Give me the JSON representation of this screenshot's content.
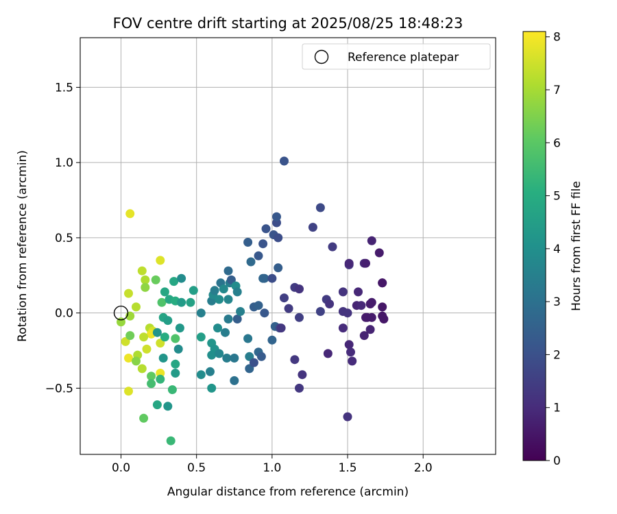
{
  "chart_data": {
    "type": "scatter",
    "title": "FOV centre drift starting at 2025/08/25 18:48:23",
    "xlabel": "Angular distance from reference (arcmin)",
    "ylabel": "Rotation from reference (arcmin)",
    "xlim": [
      -0.27,
      2.48
    ],
    "ylim": [
      -0.94,
      1.83
    ],
    "xticks": [
      0.0,
      0.5,
      1.0,
      1.5,
      2.0
    ],
    "xtick_labels": [
      "0.0",
      "0.5",
      "1.0",
      "1.5",
      "2.0"
    ],
    "yticks": [
      -0.5,
      0.0,
      0.5,
      1.0,
      1.5
    ],
    "ytick_labels": [
      "−0.5",
      "0.0",
      "0.5",
      "1.0",
      "1.5"
    ],
    "grid": true,
    "legend": {
      "placement": "top-right",
      "entries": [
        "Reference platepar"
      ]
    },
    "colorbar": {
      "label": "Hours from first FF file",
      "colormap": "viridis",
      "range": [
        0,
        8.1
      ],
      "ticks": [
        0,
        1,
        2,
        3,
        4,
        5,
        6,
        7,
        8
      ],
      "tick_labels": [
        "0",
        "1",
        "2",
        "3",
        "4",
        "5",
        "6",
        "7",
        "8"
      ]
    },
    "reference": {
      "x": 0.0,
      "y": 0.0,
      "marker": "open-circle"
    },
    "series": [
      {
        "points": [
          [
            0.06,
            0.66,
            7.8
          ],
          [
            0.26,
            0.35,
            7.7
          ],
          [
            0.14,
            0.28,
            7.3
          ],
          [
            0.16,
            0.22,
            7.1
          ],
          [
            0.23,
            0.22,
            6.2
          ],
          [
            0.16,
            0.17,
            6.7
          ],
          [
            0.05,
            0.13,
            7.4
          ],
          [
            0.1,
            0.04,
            7.2
          ],
          [
            0.06,
            -0.02,
            6.9
          ],
          [
            0.0,
            -0.06,
            6.8
          ],
          [
            0.19,
            -0.1,
            7.2
          ],
          [
            0.21,
            -0.12,
            7.6
          ],
          [
            0.2,
            -0.14,
            7.9
          ],
          [
            0.24,
            -0.13,
            4.2
          ],
          [
            0.03,
            -0.19,
            7.5
          ],
          [
            0.15,
            -0.16,
            7.3
          ],
          [
            0.06,
            -0.15,
            6.3
          ],
          [
            0.26,
            -0.2,
            7.5
          ],
          [
            0.17,
            -0.24,
            7.5
          ],
          [
            0.11,
            -0.28,
            7.1
          ],
          [
            0.05,
            -0.3,
            7.9
          ],
          [
            0.1,
            -0.32,
            6.6
          ],
          [
            0.14,
            -0.37,
            7.2
          ],
          [
            0.26,
            -0.4,
            7.9
          ],
          [
            0.2,
            -0.42,
            6.1
          ],
          [
            0.26,
            -0.44,
            5.3
          ],
          [
            0.2,
            -0.47,
            5.6
          ],
          [
            0.05,
            -0.52,
            7.7
          ],
          [
            0.34,
            -0.51,
            5.4
          ],
          [
            0.24,
            -0.61,
            4.8
          ],
          [
            0.31,
            -0.62,
            4.2
          ],
          [
            0.15,
            -0.7,
            6.1
          ],
          [
            0.33,
            -0.85,
            5.4
          ],
          [
            0.35,
            0.21,
            4.8
          ],
          [
            0.29,
            0.14,
            4.8
          ],
          [
            0.4,
            0.23,
            3.9
          ],
          [
            0.27,
            0.07,
            5.8
          ],
          [
            0.32,
            0.09,
            4.8
          ],
          [
            0.36,
            0.08,
            5.0
          ],
          [
            0.4,
            0.07,
            4.4
          ],
          [
            0.46,
            0.07,
            4.6
          ],
          [
            0.48,
            0.15,
            4.5
          ],
          [
            0.28,
            -0.03,
            4.7
          ],
          [
            0.31,
            -0.05,
            4.5
          ],
          [
            0.39,
            -0.1,
            4.3
          ],
          [
            0.29,
            -0.16,
            5.0
          ],
          [
            0.36,
            -0.17,
            5.8
          ],
          [
            0.38,
            -0.24,
            3.9
          ],
          [
            0.28,
            -0.3,
            4.2
          ],
          [
            0.36,
            -0.34,
            4.8
          ],
          [
            0.36,
            -0.4,
            4.4
          ],
          [
            0.53,
            0.0,
            3.5
          ],
          [
            0.53,
            -0.16,
            4.5
          ],
          [
            0.6,
            -0.2,
            4.2
          ],
          [
            0.62,
            -0.24,
            4.1
          ],
          [
            0.6,
            -0.28,
            4.0
          ],
          [
            0.65,
            -0.27,
            3.7
          ],
          [
            0.53,
            -0.41,
            3.9
          ],
          [
            0.59,
            -0.39,
            3.5
          ],
          [
            0.6,
            -0.5,
            4.2
          ],
          [
            0.6,
            0.08,
            3.4
          ],
          [
            0.61,
            0.12,
            3.8
          ],
          [
            0.62,
            0.15,
            3.4
          ],
          [
            0.65,
            0.09,
            3.9
          ],
          [
            0.66,
            0.2,
            3.1
          ],
          [
            0.68,
            0.16,
            3.8
          ],
          [
            0.71,
            0.28,
            2.8
          ],
          [
            0.72,
            0.2,
            3.4
          ],
          [
            0.73,
            0.22,
            2.4
          ],
          [
            0.71,
            0.09,
            3.7
          ],
          [
            0.76,
            0.18,
            3.9
          ],
          [
            0.77,
            0.14,
            3.5
          ],
          [
            0.64,
            -0.1,
            3.9
          ],
          [
            0.69,
            -0.13,
            3.4
          ],
          [
            0.71,
            -0.04,
            3.3
          ],
          [
            0.77,
            -0.04,
            2.4
          ],
          [
            0.7,
            -0.3,
            3.4
          ],
          [
            0.75,
            -0.3,
            3.2
          ],
          [
            0.75,
            -0.45,
            3.0
          ],
          [
            0.79,
            0.01,
            3.5
          ],
          [
            0.84,
            0.47,
            2.4
          ],
          [
            0.86,
            0.34,
            2.8
          ],
          [
            0.88,
            0.04,
            2.4
          ],
          [
            0.91,
            0.05,
            2.5
          ],
          [
            0.84,
            -0.17,
            3.2
          ],
          [
            0.85,
            -0.29,
            3.4
          ],
          [
            0.85,
            -0.37,
            2.6
          ],
          [
            0.88,
            -0.33,
            2.0
          ],
          [
            0.91,
            -0.26,
            2.7
          ],
          [
            0.93,
            -0.29,
            2.3
          ],
          [
            0.91,
            0.38,
            2.2
          ],
          [
            0.94,
            0.46,
            2.1
          ],
          [
            0.96,
            0.56,
            2.1
          ],
          [
            0.94,
            0.23,
            2.7
          ],
          [
            0.95,
            0.23,
            2.6
          ],
          [
            0.95,
            0.0,
            2.2
          ],
          [
            1.0,
            0.23,
            1.9
          ],
          [
            1.01,
            0.52,
            2.1
          ],
          [
            1.03,
            0.6,
            1.9
          ],
          [
            1.03,
            0.64,
            2.2
          ],
          [
            1.04,
            0.5,
            1.9
          ],
          [
            1.04,
            0.3,
            2.4
          ],
          [
            1.0,
            -0.18,
            2.6
          ],
          [
            1.02,
            -0.09,
            2.5
          ],
          [
            1.05,
            -0.1,
            1.9
          ],
          [
            1.06,
            -0.1,
            1.3
          ],
          [
            1.08,
            0.1,
            1.5
          ],
          [
            1.08,
            1.01,
            2.1
          ],
          [
            1.11,
            0.03,
            1.4
          ],
          [
            1.15,
            0.17,
            1.4
          ],
          [
            1.18,
            0.16,
            1.2
          ],
          [
            1.18,
            -0.03,
            1.5
          ],
          [
            1.15,
            -0.31,
            1.3
          ],
          [
            1.18,
            -0.5,
            1.3
          ],
          [
            1.2,
            -0.41,
            1.2
          ],
          [
            1.27,
            0.57,
            1.6
          ],
          [
            1.32,
            0.7,
            1.8
          ],
          [
            1.32,
            0.01,
            1.6
          ],
          [
            1.36,
            0.09,
            1.4
          ],
          [
            1.38,
            0.06,
            1.2
          ],
          [
            1.37,
            -0.27,
            0.9
          ],
          [
            1.4,
            0.44,
            1.4
          ],
          [
            1.47,
            0.14,
            1.2
          ],
          [
            1.47,
            -0.1,
            1.0
          ],
          [
            1.47,
            0.01,
            1.2
          ],
          [
            1.5,
            0.0,
            1.2
          ],
          [
            1.51,
            0.32,
            1.2
          ],
          [
            1.51,
            0.33,
            0.9
          ],
          [
            1.51,
            -0.21,
            0.9
          ],
          [
            1.52,
            -0.26,
            1.0
          ],
          [
            1.53,
            -0.32,
            1.0
          ],
          [
            1.5,
            -0.69,
            1.2
          ],
          [
            1.56,
            0.05,
            0.8
          ],
          [
            1.57,
            0.14,
            0.9
          ],
          [
            1.59,
            0.05,
            0.9
          ],
          [
            1.61,
            0.33,
            0.9
          ],
          [
            1.62,
            0.33,
            0.7
          ],
          [
            1.61,
            -0.15,
            0.8
          ],
          [
            1.62,
            -0.03,
            0.6
          ],
          [
            1.63,
            -0.03,
            0.6
          ],
          [
            1.65,
            0.06,
            0.6
          ],
          [
            1.66,
            0.07,
            0.6
          ],
          [
            1.65,
            -0.11,
            0.8
          ],
          [
            1.66,
            -0.03,
            0.6
          ],
          [
            1.66,
            0.48,
            0.8
          ],
          [
            1.71,
            0.4,
            0.6
          ],
          [
            1.73,
            0.2,
            0.5
          ],
          [
            1.73,
            0.2,
            0.5
          ],
          [
            1.73,
            -0.02,
            0.5
          ],
          [
            1.74,
            -0.04,
            0.5
          ],
          [
            1.73,
            0.04,
            0.5
          ]
        ]
      }
    ]
  }
}
